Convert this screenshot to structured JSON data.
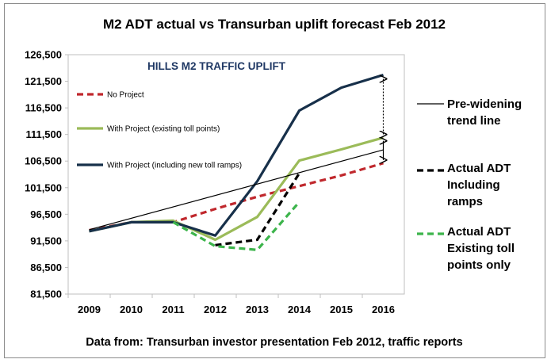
{
  "chart_data": {
    "type": "line",
    "title": "M2 ADT actual vs Transurban  uplift forecast Feb 2012",
    "inner_title": "HILLS M2 TRAFFIC UPLIFT",
    "source_note": "Data from: Transurban investor presentation Feb 2012, traffic reports",
    "categories": [
      "2009",
      "2010",
      "2011",
      "2012",
      "2013",
      "2014",
      "2015",
      "2016"
    ],
    "ylim": [
      81500,
      126500
    ],
    "yticks": [
      "126,500",
      "121,500",
      "116,500",
      "111,500",
      "106,500",
      "101,500",
      "96,500",
      "91,500",
      "86,500",
      "81,500"
    ],
    "ytick_values": [
      126500,
      121500,
      116500,
      111500,
      106500,
      101500,
      96500,
      91500,
      86500,
      81500
    ],
    "grid": false,
    "series": [
      {
        "name": "No Project",
        "color": "#c0282d",
        "dash": "dashed",
        "values": [
          93500,
          95000,
          95000,
          97500,
          99800,
          101800,
          103800,
          106100
        ]
      },
      {
        "name": "With Project (existing toll points)",
        "color": "#9bbb59",
        "dash": "solid",
        "values": [
          93300,
          95000,
          95300,
          91700,
          96000,
          106600,
          108700,
          110900
        ]
      },
      {
        "name": "With Project (including new toll ramps)",
        "color": "#17304a",
        "dash": "solid",
        "values": [
          93300,
          95000,
          95000,
          92500,
          102700,
          116000,
          120300,
          122700
        ]
      },
      {
        "name": "Pre-widening trend line",
        "color": "#000000",
        "dash": "thin",
        "values": [
          93600,
          null,
          null,
          null,
          null,
          null,
          null,
          108600
        ]
      },
      {
        "name": "Actual ADT Including ramps",
        "color": "#000000",
        "dash": "dashed",
        "values": [
          null,
          null,
          null,
          90700,
          91700,
          104200,
          null,
          null
        ]
      },
      {
        "name": "Actual ADT Existing toll points only",
        "color": "#3cb44b",
        "dash": "dashed",
        "values": [
          null,
          null,
          95000,
          90500,
          89800,
          98800,
          null,
          null
        ]
      }
    ],
    "inner_legend": [
      "No Project",
      "With Project (existing toll points)",
      "With Project (including new toll ramps)"
    ],
    "right_legend": [
      {
        "lines": [
          "Pre-widening",
          "trend line"
        ]
      },
      {
        "lines": [
          "Actual ADT",
          "Including",
          "ramps"
        ]
      },
      {
        "lines": [
          "Actual ADT",
          "Existing toll",
          "points only"
        ]
      }
    ]
  }
}
